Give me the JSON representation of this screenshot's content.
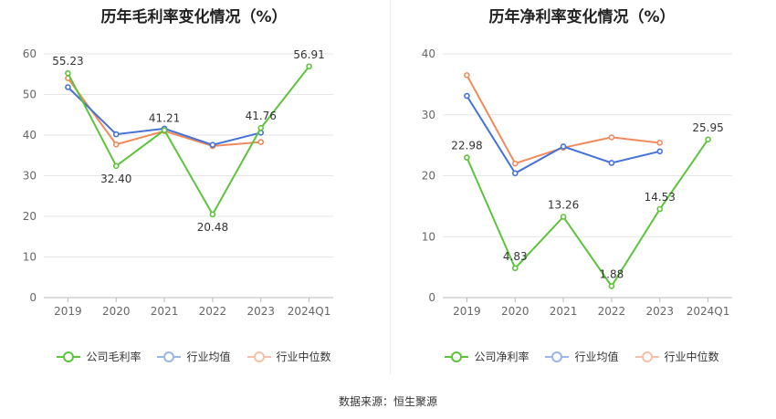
{
  "source_text": "数据来源：恒生聚源",
  "chart_data": [
    {
      "type": "line",
      "title": "历年毛利率变化情况（%）",
      "categories": [
        "2019",
        "2020",
        "2021",
        "2022",
        "2023",
        "2024Q1"
      ],
      "ylim": [
        0,
        60
      ],
      "yticks": [
        0,
        10,
        20,
        30,
        40,
        50,
        60
      ],
      "grid": true,
      "legend": "bottom",
      "series": [
        {
          "name": "公司毛利率",
          "color": "#5cc43a",
          "values": [
            55.23,
            32.4,
            41.21,
            20.48,
            41.76,
            56.91
          ],
          "labels": [
            "55.23",
            "32.40",
            "41.21",
            "20.48",
            "41.76",
            "56.91"
          ]
        },
        {
          "name": "行业均值",
          "color": "#4472d8",
          "values": [
            51.8,
            40.2,
            41.6,
            37.6,
            40.6,
            null
          ]
        },
        {
          "name": "行业中位数",
          "color": "#f08a5d",
          "values": [
            54.0,
            37.7,
            41.0,
            37.3,
            38.3,
            null
          ]
        }
      ]
    },
    {
      "type": "line",
      "title": "历年净利率变化情况（%）",
      "categories": [
        "2019",
        "2020",
        "2021",
        "2022",
        "2023",
        "2024Q1"
      ],
      "ylim": [
        0,
        40
      ],
      "yticks": [
        0,
        10,
        20,
        30,
        40
      ],
      "grid": true,
      "legend": "bottom",
      "series": [
        {
          "name": "公司净利率",
          "color": "#5cc43a",
          "values": [
            22.98,
            4.83,
            13.26,
            1.88,
            14.53,
            25.95
          ],
          "labels": [
            "22.98",
            "4.83",
            "13.26",
            "1.88",
            "14.53",
            "25.95"
          ]
        },
        {
          "name": "行业均值",
          "color": "#4472d8",
          "values": [
            33.1,
            20.4,
            24.8,
            22.1,
            24.0,
            null
          ]
        },
        {
          "name": "行业中位数",
          "color": "#f08a5d",
          "values": [
            36.5,
            22.0,
            24.6,
            26.3,
            25.4,
            null
          ]
        }
      ]
    }
  ]
}
